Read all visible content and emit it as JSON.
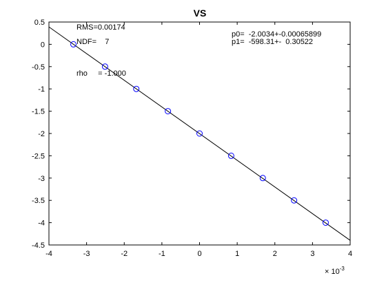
{
  "chart_data": {
    "type": "scatter",
    "title": "VS",
    "xlabel": "",
    "ylabel": "",
    "xlim": [
      -0.004,
      0.004
    ],
    "ylim": [
      -4.5,
      0.5
    ],
    "grid": false,
    "x_exponent_label": "× 10",
    "x_exponent_power": "-3",
    "x_ticks": [
      -0.004,
      -0.003,
      -0.002,
      -0.001,
      0,
      0.001,
      0.002,
      0.003,
      0.004
    ],
    "x_tick_labels": [
      "-4",
      "-3",
      "-2",
      "-1",
      "0",
      "1",
      "2",
      "3",
      "4"
    ],
    "y_ticks": [
      0.5,
      0,
      -0.5,
      -1,
      -1.5,
      -2,
      -2.5,
      -3,
      -3.5,
      -4,
      -4.5
    ],
    "y_tick_labels": [
      "0.5",
      "0",
      "-0.5",
      "-1",
      "-1.5",
      "-2",
      "-2.5",
      "-3",
      "-3.5",
      "-4",
      "-4.5"
    ],
    "series": [
      {
        "marker": "circle",
        "color": "#0000ff",
        "x": [
          -0.00335,
          -0.00251,
          -0.00168,
          -0.00084,
          0.0,
          0.00084,
          0.00168,
          0.00251,
          0.00335
        ],
        "y": [
          0,
          -0.5,
          -1,
          -1.5,
          -2,
          -2.5,
          -3,
          -3.5,
          -4
        ]
      }
    ],
    "fit_line": {
      "p0": -2.0034,
      "p1": -598.31,
      "color": "#000000"
    },
    "annotations": {
      "rms": "RMS=0.00174",
      "ndf": "NDF=    7",
      "rho": "rho     = -1.000",
      "p0": "p0=  -2.0034+-0.00065899",
      "p1": "p1=  -598.31+-  0.30522"
    }
  }
}
